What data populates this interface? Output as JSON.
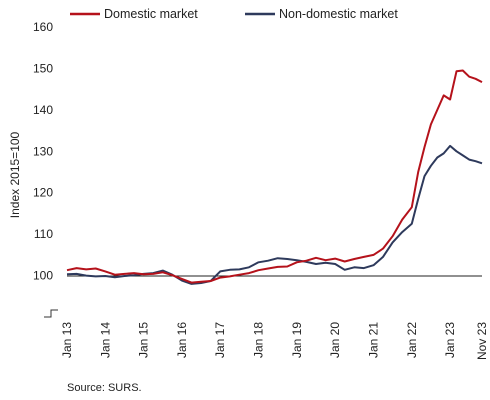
{
  "chart_data": {
    "type": "line",
    "ylabel": "Index 2015=100",
    "ylim": [
      90,
      160
    ],
    "yticks": [
      "160",
      "150",
      "140",
      "130",
      "120",
      "110",
      "100"
    ],
    "xticks": [
      "Jan 13",
      "Jan 14",
      "Jan 15",
      "Jan 16",
      "Jan 17",
      "Jan 18",
      "Jan 19",
      "Jan 20",
      "Jan 21",
      "Jan 22",
      "Jan 23",
      "Nov 23"
    ],
    "axis_break": true,
    "reference_line": 100,
    "grid": false,
    "legend_position": "top",
    "source": "Source: SURS.",
    "series": [
      {
        "name": "Domestic market",
        "color": "#b5121b",
        "points": [
          [
            "2013-01",
            101.3
          ],
          [
            "2013-04",
            101.8
          ],
          [
            "2013-07",
            101.5
          ],
          [
            "2013-10",
            101.7
          ],
          [
            "2014-01",
            101.0
          ],
          [
            "2014-04",
            100.2
          ],
          [
            "2014-07",
            100.4
          ],
          [
            "2014-10",
            100.6
          ],
          [
            "2015-01",
            100.3
          ],
          [
            "2015-04",
            100.4
          ],
          [
            "2015-07",
            100.8
          ],
          [
            "2015-10",
            100.1
          ],
          [
            "2016-01",
            99.2
          ],
          [
            "2016-04",
            98.3
          ],
          [
            "2016-07",
            98.5
          ],
          [
            "2016-10",
            98.7
          ],
          [
            "2017-01",
            99.5
          ],
          [
            "2017-04",
            99.8
          ],
          [
            "2017-07",
            100.2
          ],
          [
            "2017-10",
            100.6
          ],
          [
            "2018-01",
            101.3
          ],
          [
            "2018-04",
            101.7
          ],
          [
            "2018-07",
            102.1
          ],
          [
            "2018-10",
            102.2
          ],
          [
            "2019-01",
            103.2
          ],
          [
            "2019-04",
            103.6
          ],
          [
            "2019-07",
            104.3
          ],
          [
            "2019-10",
            103.7
          ],
          [
            "2020-01",
            104.1
          ],
          [
            "2020-04",
            103.4
          ],
          [
            "2020-07",
            104.0
          ],
          [
            "2020-10",
            104.5
          ],
          [
            "2021-01",
            105.0
          ],
          [
            "2021-04",
            106.5
          ],
          [
            "2021-07",
            109.5
          ],
          [
            "2021-10",
            113.5
          ],
          [
            "2022-01",
            116.5
          ],
          [
            "2022-03",
            125.0
          ],
          [
            "2022-05",
            131.0
          ],
          [
            "2022-07",
            136.5
          ],
          [
            "2022-09",
            140.0
          ],
          [
            "2022-11",
            143.5
          ],
          [
            "2023-01",
            142.5
          ],
          [
            "2023-03",
            149.3
          ],
          [
            "2023-05",
            149.5
          ],
          [
            "2023-07",
            148.0
          ],
          [
            "2023-09",
            147.5
          ],
          [
            "2023-11",
            146.7
          ]
        ]
      },
      {
        "name": "Non-domestic market",
        "color": "#2e3a5c",
        "points": [
          [
            "2013-01",
            100.3
          ],
          [
            "2013-04",
            100.4
          ],
          [
            "2013-07",
            100.0
          ],
          [
            "2013-10",
            99.8
          ],
          [
            "2014-01",
            99.9
          ],
          [
            "2014-04",
            99.6
          ],
          [
            "2014-07",
            99.9
          ],
          [
            "2014-10",
            100.1
          ],
          [
            "2015-01",
            100.4
          ],
          [
            "2015-04",
            100.6
          ],
          [
            "2015-07",
            101.2
          ],
          [
            "2015-10",
            100.2
          ],
          [
            "2016-01",
            98.8
          ],
          [
            "2016-04",
            98.0
          ],
          [
            "2016-07",
            98.2
          ],
          [
            "2016-10",
            98.7
          ],
          [
            "2017-01",
            101.0
          ],
          [
            "2017-04",
            101.4
          ],
          [
            "2017-07",
            101.5
          ],
          [
            "2017-10",
            102.0
          ],
          [
            "2018-01",
            103.2
          ],
          [
            "2018-04",
            103.6
          ],
          [
            "2018-07",
            104.2
          ],
          [
            "2018-10",
            104.0
          ],
          [
            "2019-01",
            103.7
          ],
          [
            "2019-04",
            103.3
          ],
          [
            "2019-07",
            102.8
          ],
          [
            "2019-10",
            103.1
          ],
          [
            "2020-01",
            102.8
          ],
          [
            "2020-04",
            101.4
          ],
          [
            "2020-07",
            102.0
          ],
          [
            "2020-10",
            101.8
          ],
          [
            "2021-01",
            102.5
          ],
          [
            "2021-04",
            104.5
          ],
          [
            "2021-07",
            108.0
          ],
          [
            "2021-10",
            110.5
          ],
          [
            "2022-01",
            112.5
          ],
          [
            "2022-03",
            118.5
          ],
          [
            "2022-05",
            124.0
          ],
          [
            "2022-07",
            126.5
          ],
          [
            "2022-09",
            128.5
          ],
          [
            "2022-11",
            129.5
          ],
          [
            "2023-01",
            131.3
          ],
          [
            "2023-03",
            130.0
          ],
          [
            "2023-05",
            129.0
          ],
          [
            "2023-07",
            128.0
          ],
          [
            "2023-09",
            127.6
          ],
          [
            "2023-11",
            127.1
          ]
        ]
      }
    ]
  }
}
